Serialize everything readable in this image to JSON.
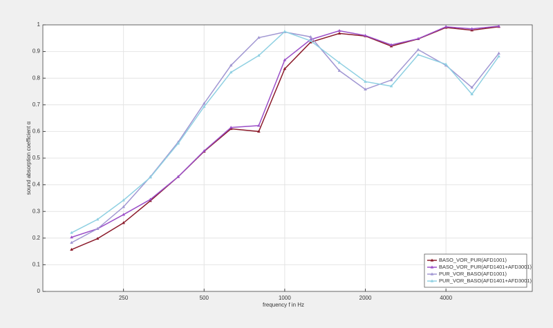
{
  "chart_data": {
    "type": "line",
    "xlabel": "frequency f in Hz",
    "ylabel": "sound absorption coefficient α",
    "x": [
      160,
      200,
      250,
      315,
      400,
      500,
      630,
      800,
      1000,
      1250,
      1600,
      2000,
      2500,
      3150,
      4000,
      5000,
      6300
    ],
    "xscale": "log",
    "xlim": [
      125,
      8400
    ],
    "xticks": [
      250,
      500,
      1000,
      2000,
      4000
    ],
    "ylim": [
      0,
      1
    ],
    "yticks": [
      0,
      0.1,
      0.2,
      0.3,
      0.4,
      0.5,
      0.6,
      0.7,
      0.8,
      0.9,
      1
    ],
    "grid": true,
    "legend": "lower right",
    "series": [
      {
        "name": "BASO_VOR_PUR(AFD1001)",
        "color": "#8b1a2a",
        "values": [
          0.157,
          0.198,
          0.257,
          0.34,
          0.43,
          0.525,
          0.61,
          0.6,
          0.835,
          0.935,
          0.968,
          0.958,
          0.92,
          0.947,
          0.99,
          0.98,
          0.993
        ]
      },
      {
        "name": "BASO_VOR_PUR(AFD1401+AFD3001)",
        "color": "#9b4fc8",
        "values": [
          0.203,
          0.235,
          0.288,
          0.345,
          0.43,
          0.527,
          0.615,
          0.622,
          0.868,
          0.945,
          0.978,
          0.96,
          0.925,
          0.948,
          0.993,
          0.985,
          0.995
        ]
      },
      {
        "name": "PUR_VOR_BASO(AFD1001)",
        "color": "#a096d2",
        "values": [
          0.183,
          0.235,
          0.317,
          0.43,
          0.56,
          0.705,
          0.848,
          0.952,
          0.973,
          0.955,
          0.828,
          0.758,
          0.793,
          0.907,
          0.848,
          0.765,
          0.893
        ]
      },
      {
        "name": "PUR_VOR_BASO(AFD1401+AFD3001)",
        "color": "#8fd0e2",
        "values": [
          0.22,
          0.27,
          0.342,
          0.428,
          0.555,
          0.693,
          0.822,
          0.885,
          0.975,
          0.94,
          0.858,
          0.787,
          0.77,
          0.888,
          0.852,
          0.74,
          0.882
        ]
      }
    ]
  }
}
